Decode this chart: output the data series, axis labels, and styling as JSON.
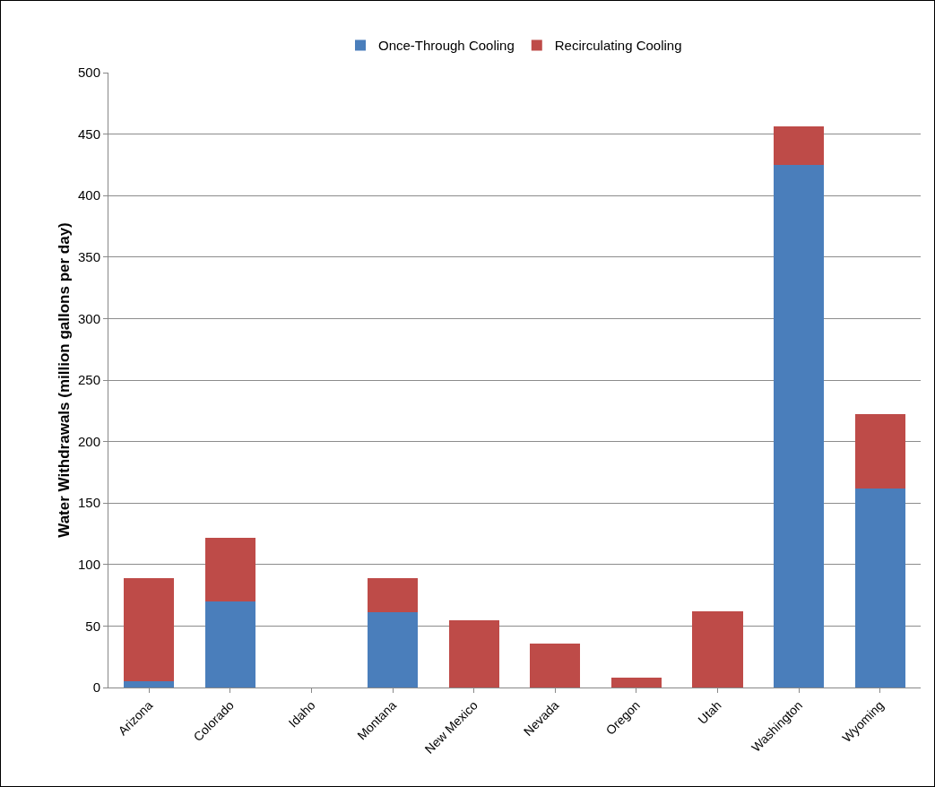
{
  "chart_data": {
    "type": "bar",
    "stacked": true,
    "ylabel": "Water Withdrawals (million gallons per day)",
    "categories": [
      "Arizona",
      "Colorado",
      "Idaho",
      "Montana",
      "New Mexico",
      "Nevada",
      "Oregon",
      "Utah",
      "Washington",
      "Wyoming"
    ],
    "series": [
      {
        "name": "Once-Through Cooling",
        "color": "#4a7ebb",
        "values": [
          5,
          70,
          0,
          61,
          0,
          0,
          0,
          0,
          425,
          162
        ]
      },
      {
        "name": "Recirculating Cooling",
        "color": "#be4b48",
        "values": [
          84,
          52,
          0,
          28,
          55,
          36,
          8,
          62,
          31,
          60
        ]
      }
    ],
    "ylim": [
      0,
      500
    ],
    "yticks": [
      0,
      50,
      100,
      150,
      200,
      250,
      300,
      350,
      400,
      450,
      500
    ],
    "grid": "y",
    "legend": "top"
  }
}
